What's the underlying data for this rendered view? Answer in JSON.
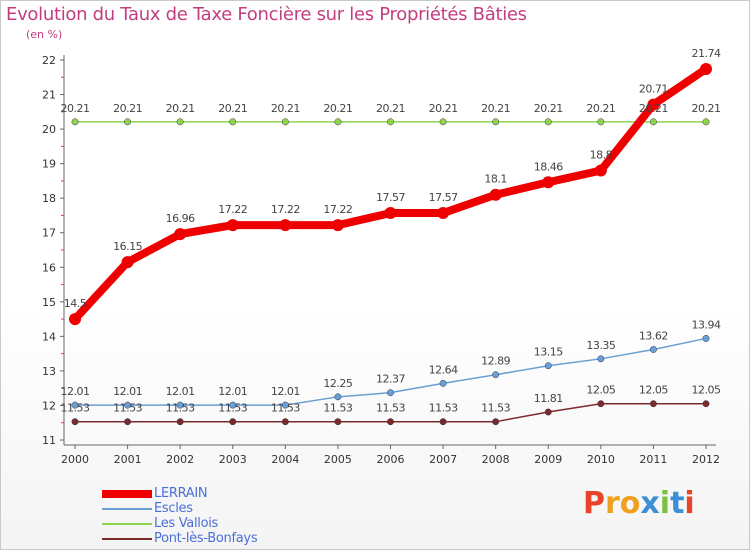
{
  "chart_data": {
    "type": "line",
    "title": "Evolution du Taux de Taxe Foncière sur les Propriétés Bâties",
    "subtitle": "(en %)",
    "categories": [
      "2000",
      "2001",
      "2002",
      "2003",
      "2004",
      "2005",
      "2006",
      "2007",
      "2008",
      "2009",
      "2010",
      "2011",
      "2012"
    ],
    "y_ticks": [
      "11",
      "12",
      "13",
      "14",
      "15",
      "16",
      "17",
      "18",
      "19",
      "20",
      "21",
      "22"
    ],
    "ylim": [
      11,
      22
    ],
    "grid": false,
    "legend_position": "bottom-left",
    "series": [
      {
        "name": "LERRAIN",
        "color": "#ee0000",
        "values": [
          14.5,
          16.15,
          16.96,
          17.22,
          17.22,
          17.22,
          17.57,
          17.57,
          18.1,
          18.46,
          18.8,
          20.71,
          21.74
        ],
        "labels": [
          "14.5",
          "16.15",
          "16.96",
          "17.22",
          "17.22",
          "17.22",
          "17.57",
          "17.57",
          "18.1",
          "18.46",
          "18.8",
          "20.71",
          "21.74"
        ]
      },
      {
        "name": "Escles",
        "color": "#6a9fd3",
        "values": [
          12.01,
          12.01,
          12.01,
          12.01,
          12.01,
          12.25,
          12.37,
          12.64,
          12.89,
          13.15,
          13.35,
          13.62,
          13.94
        ],
        "labels": [
          "12.01",
          "12.01",
          "12.01",
          "12.01",
          "12.01",
          "12.25",
          "12.37",
          "12.64",
          "12.89",
          "13.15",
          "13.35",
          "13.62",
          "13.94"
        ]
      },
      {
        "name": "Les Vallois",
        "color": "#8fd44a",
        "values": [
          20.21,
          20.21,
          20.21,
          20.21,
          20.21,
          20.21,
          20.21,
          20.21,
          20.21,
          20.21,
          20.21,
          20.21,
          20.21
        ],
        "labels": [
          "20.21",
          "20.21",
          "20.21",
          "20.21",
          "20.21",
          "20.21",
          "20.21",
          "20.21",
          "20.21",
          "20.21",
          "20.21",
          "20.21",
          "20.21"
        ]
      },
      {
        "name": "Pont-lès-Bonfays",
        "color": "#7b2a2a",
        "values": [
          11.53,
          11.53,
          11.53,
          11.53,
          11.53,
          11.53,
          11.53,
          11.53,
          11.53,
          11.81,
          12.05,
          12.05,
          12.05
        ],
        "labels": [
          "11.53",
          "11.53",
          "11.53",
          "11.53",
          "11.53",
          "11.53",
          "11.53",
          "11.53",
          "11.53",
          "11.81",
          "12.05",
          "12.05",
          "12.05"
        ]
      }
    ]
  },
  "logo": {
    "letters": [
      "P",
      "r",
      "o",
      "x",
      "i",
      "t",
      "i"
    ],
    "colors": [
      "#e8442a",
      "#f0a020",
      "#f0a020",
      "#3a8fd6",
      "#7ac142",
      "#3a8fd6",
      "#e8442a"
    ]
  }
}
